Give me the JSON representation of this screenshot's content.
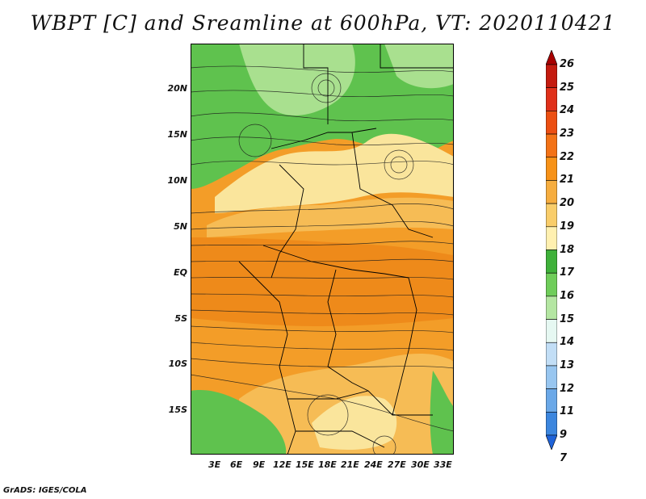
{
  "title": "WBPT [C] and Sreamline at 600hPa, VT: 2020110421",
  "credit": "GrADS: IGES/COLA",
  "map": {
    "lat_ticks": [
      "20N",
      "15N",
      "10N",
      "5N",
      "EQ",
      "5S",
      "10S",
      "15S"
    ],
    "lon_ticks": [
      "3E",
      "6E",
      "9E",
      "12E",
      "15E",
      "18E",
      "21E",
      "24E",
      "27E",
      "30E",
      "33E"
    ],
    "lat_range": [
      -20,
      24.5
    ],
    "lon_range": [
      0,
      34.5
    ]
  },
  "colorbar": {
    "labels": [
      "26",
      "25",
      "24",
      "23",
      "22",
      "21",
      "20",
      "19",
      "18",
      "17",
      "16",
      "15",
      "14",
      "13",
      "12",
      "11",
      "9",
      "7"
    ],
    "colors": [
      "#a80000",
      "#c41b0f",
      "#e0301a",
      "#ec4f12",
      "#f37216",
      "#f79218",
      "#f6ad3f",
      "#f9cd6a",
      "#fff0b0",
      "#3fb13a",
      "#6fcd5a",
      "#b4e6a2",
      "#e6f8f2",
      "#c2def6",
      "#98c6f0",
      "#6aa8e8",
      "#3c86de",
      "#1f63d8"
    ]
  },
  "palette": {
    "green": "#5fc24e",
    "light_green": "#a9e08f",
    "dark_green": "#3aa83a",
    "yellow": "#fae59c",
    "light_orange": "#f6bc55",
    "orange": "#f39d28",
    "deep_orange": "#ee8a1a",
    "streamline": "#1a1a1a",
    "border": "#000000"
  }
}
